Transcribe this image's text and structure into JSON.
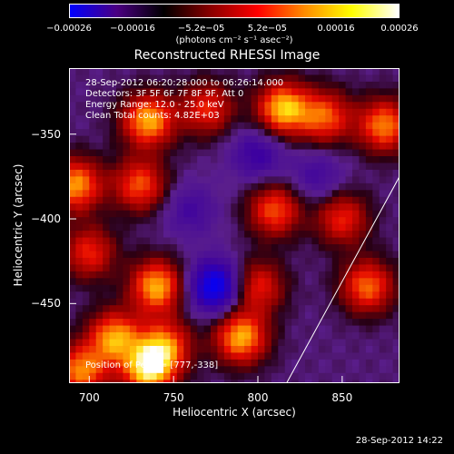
{
  "colorbar": {
    "ticks": [
      "−0.00026",
      "−0.00016",
      "−5.2e−05",
      "5.2e−05",
      "0.00016",
      "0.00026"
    ],
    "tick_values": [
      -0.00026,
      -0.00016,
      -5.2e-05,
      5.2e-05,
      0.00016,
      0.00026
    ],
    "range": [
      -0.00026,
      0.00026
    ],
    "unit": "(photons cm⁻² s⁻¹ asec⁻²)",
    "colors": [
      "#0000ff",
      "#4b0082",
      "#000000",
      "#8b0000",
      "#ff0000",
      "#ff8c00",
      "#ffff00",
      "#ffffff"
    ]
  },
  "chart_data": {
    "type": "heatmap",
    "title": "Reconstructed RHESSI Image",
    "xlabel": "Heliocentric X (arcsec)",
    "ylabel": "Heliocentric Y (arcsec)",
    "xlim": [
      688,
      884
    ],
    "ylim": [
      -497,
      -311
    ],
    "xticks": [
      700,
      750,
      800,
      850
    ],
    "yticks": [
      -350,
      -400,
      -450
    ],
    "info_lines": [
      "28-Sep-2012 06:20:28.000 to 06:26:14.000",
      "Detectors: 3F 5F 6F 7F 8F 9F, Att 0",
      "Energy Range: 12.0 - 25.0 keV",
      "Clean    Total counts: 4.82E+03"
    ],
    "peak_label": "Position of Peak = [777,-338]",
    "peak": [
      777,
      -338
    ],
    "limb_line": [
      [
        817,
        -497
      ],
      [
        884,
        -375
      ]
    ],
    "hotspots": [
      {
        "x": 735,
        "y": -342,
        "v": 0.9
      },
      {
        "x": 770,
        "y": -335,
        "v": 0.6
      },
      {
        "x": 815,
        "y": -335,
        "v": 0.95
      },
      {
        "x": 840,
        "y": -340,
        "v": 0.7
      },
      {
        "x": 875,
        "y": -345,
        "v": 0.8
      },
      {
        "x": 692,
        "y": -380,
        "v": 0.85
      },
      {
        "x": 730,
        "y": -380,
        "v": 0.7
      },
      {
        "x": 810,
        "y": -395,
        "v": 0.7
      },
      {
        "x": 850,
        "y": -400,
        "v": 0.6
      },
      {
        "x": 700,
        "y": -420,
        "v": 0.6
      },
      {
        "x": 740,
        "y": -440,
        "v": 0.9
      },
      {
        "x": 800,
        "y": -440,
        "v": 0.6
      },
      {
        "x": 865,
        "y": -440,
        "v": 0.75
      },
      {
        "x": 715,
        "y": -470,
        "v": 0.85
      },
      {
        "x": 745,
        "y": -475,
        "v": 0.75
      },
      {
        "x": 790,
        "y": -470,
        "v": 0.9
      },
      {
        "x": 735,
        "y": -490,
        "v": 0.95
      },
      {
        "x": 695,
        "y": -490,
        "v": 0.8
      }
    ],
    "coldspots": [
      {
        "x": 775,
        "y": -440,
        "v": -0.85
      },
      {
        "x": 800,
        "y": -362,
        "v": -0.4
      },
      {
        "x": 760,
        "y": -395,
        "v": -0.3
      },
      {
        "x": 835,
        "y": -375,
        "v": -0.3
      }
    ],
    "grid": false
  },
  "timestamp": "28-Sep-2012 14:22"
}
